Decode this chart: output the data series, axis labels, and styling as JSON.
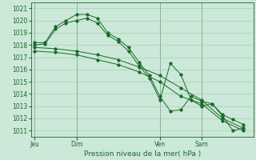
{
  "title": "",
  "xlabel": "Pression niveau de la mer( hPa )",
  "ylabel": "",
  "background_color": "#cce8d8",
  "grid_color": "#aaccbb",
  "line_color": "#1a6b2a",
  "ylim": [
    1010.5,
    1021.5
  ],
  "yticks": [
    1011,
    1012,
    1013,
    1014,
    1015,
    1016,
    1017,
    1018,
    1019,
    1020,
    1021
  ],
  "day_labels": [
    "Jeu",
    "Dim",
    "Ven",
    "Sam"
  ],
  "day_positions": [
    0,
    12,
    36,
    48
  ],
  "xlim": [
    -1,
    63
  ],
  "series": [
    {
      "x": [
        0,
        3,
        6,
        9,
        12,
        15,
        18,
        21,
        24,
        27,
        30,
        33,
        36,
        39,
        42,
        45,
        48,
        51,
        54,
        57,
        60
      ],
      "y": [
        1018.2,
        1018.2,
        1019.5,
        1020.0,
        1020.5,
        1020.5,
        1020.2,
        1019.0,
        1018.5,
        1017.8,
        1016.6,
        1015.5,
        1013.8,
        1012.6,
        1012.7,
        1013.8,
        1013.4,
        1013.2,
        1012.2,
        1011.0,
        1011.2
      ]
    },
    {
      "x": [
        0,
        3,
        6,
        9,
        12,
        15,
        18,
        21,
        24,
        27,
        30,
        33,
        36,
        39,
        42,
        45,
        48,
        51,
        54,
        57,
        60
      ],
      "y": [
        1018.0,
        1018.1,
        1019.3,
        1019.8,
        1020.0,
        1020.2,
        1019.8,
        1018.8,
        1018.3,
        1017.5,
        1016.3,
        1015.3,
        1013.5,
        1016.5,
        1015.6,
        1013.5,
        1013.0,
        1013.2,
        1012.3,
        1011.9,
        1011.5
      ]
    },
    {
      "x": [
        0,
        6,
        12,
        18,
        24,
        30,
        36,
        42,
        48,
        54,
        60
      ],
      "y": [
        1017.8,
        1017.7,
        1017.5,
        1017.2,
        1016.8,
        1016.2,
        1015.5,
        1014.5,
        1013.5,
        1012.0,
        1011.2
      ]
    },
    {
      "x": [
        0,
        6,
        12,
        18,
        24,
        30,
        36,
        42,
        48,
        54,
        60
      ],
      "y": [
        1017.5,
        1017.4,
        1017.2,
        1016.8,
        1016.4,
        1015.8,
        1015.0,
        1013.8,
        1013.2,
        1011.8,
        1011.0
      ]
    }
  ]
}
